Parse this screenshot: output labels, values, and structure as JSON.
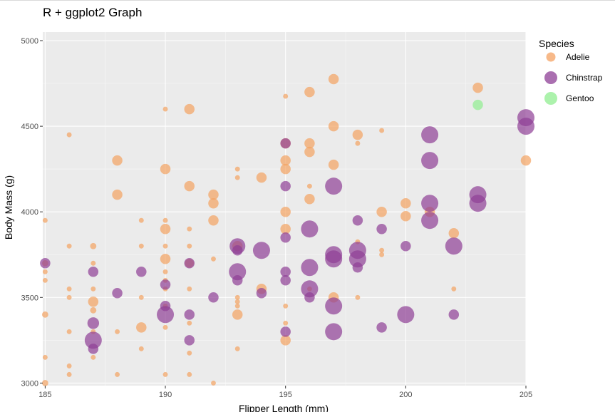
{
  "chart_data": {
    "type": "scatter",
    "title": "R + ggplot2 Graph",
    "xlabel": "Flipper Length (mm)",
    "ylabel": "Body Mass (g)",
    "xlim": [
      184.9,
      205
    ],
    "ylim": [
      2985,
      5050
    ],
    "x_ticks": [
      185,
      190,
      195,
      200,
      205
    ],
    "y_ticks": [
      3000,
      3500,
      4000,
      4500,
      5000
    ],
    "grid": true,
    "legend": {
      "title": "Species",
      "position": "right"
    },
    "size_range": [
      5,
      24
    ],
    "series": [
      {
        "name": "Adelie",
        "color": "#F4A261",
        "points": [
          [
            185,
            3950,
            0.1
          ],
          [
            185,
            3700,
            0.2
          ],
          [
            185,
            3650,
            0.1
          ],
          [
            185,
            3600,
            0.1
          ],
          [
            185,
            3400,
            0.2
          ],
          [
            185,
            3150,
            0.1
          ],
          [
            185,
            3000,
            0.2
          ],
          [
            186,
            4450,
            0.1
          ],
          [
            186,
            3800,
            0.1
          ],
          [
            186,
            3550,
            0.1
          ],
          [
            186,
            3500,
            0.1
          ],
          [
            186,
            3300,
            0.1
          ],
          [
            186,
            3100,
            0.1
          ],
          [
            186,
            3050,
            0.1
          ],
          [
            187,
            3800,
            0.2
          ],
          [
            187,
            3700,
            0.1
          ],
          [
            187,
            3550,
            0.1
          ],
          [
            187,
            3475,
            0.5
          ],
          [
            187,
            3425,
            0.2
          ],
          [
            187,
            3300,
            0.1
          ],
          [
            187,
            3150,
            0.1
          ],
          [
            188,
            4300,
            0.5
          ],
          [
            188,
            4100,
            0.5
          ],
          [
            188,
            3300,
            0.1
          ],
          [
            188,
            3050,
            0.1
          ],
          [
            189,
            3950,
            0.1
          ],
          [
            189,
            3800,
            0.1
          ],
          [
            189,
            3500,
            0.1
          ],
          [
            189,
            3325,
            0.5
          ],
          [
            189,
            3200,
            0.1
          ],
          [
            190,
            4600,
            0.1
          ],
          [
            190,
            4250,
            0.5
          ],
          [
            190,
            3950,
            0.1
          ],
          [
            190,
            3900,
            0.5
          ],
          [
            190,
            3800,
            0.1
          ],
          [
            190,
            3725,
            0.5
          ],
          [
            190,
            3650,
            0.1
          ],
          [
            190,
            3600,
            0.1
          ],
          [
            190,
            3550,
            0.1
          ],
          [
            190,
            3450,
            0.1
          ],
          [
            190,
            3325,
            0.1
          ],
          [
            190,
            3050,
            0.1
          ],
          [
            191,
            4600,
            0.5
          ],
          [
            191,
            4150,
            0.5
          ],
          [
            191,
            3900,
            0.1
          ],
          [
            191,
            3800,
            0.1
          ],
          [
            191,
            3700,
            0.4
          ],
          [
            191,
            3550,
            0.1
          ],
          [
            191,
            3350,
            0.1
          ],
          [
            191,
            3175,
            0.1
          ],
          [
            191,
            3050,
            0.1
          ],
          [
            192,
            4100,
            0.5
          ],
          [
            192,
            4050,
            0.5
          ],
          [
            192,
            3950,
            0.5
          ],
          [
            192,
            3725,
            0.1
          ],
          [
            192,
            3000,
            0.1
          ],
          [
            193,
            4250,
            0.1
          ],
          [
            193,
            4200,
            0.1
          ],
          [
            193,
            3800,
            0.5
          ],
          [
            193,
            3500,
            0.1
          ],
          [
            193,
            3475,
            0.1
          ],
          [
            193,
            3450,
            0.1
          ],
          [
            193,
            3400,
            0.5
          ],
          [
            193,
            3200,
            0.1
          ],
          [
            194,
            4200,
            0.5
          ],
          [
            194,
            3550,
            0.5
          ],
          [
            195,
            4675,
            0.1
          ],
          [
            195,
            4400,
            0.5
          ],
          [
            195,
            4300,
            0.5
          ],
          [
            195,
            4250,
            0.5
          ],
          [
            195,
            4000,
            0.5
          ],
          [
            195,
            3900,
            0.5
          ],
          [
            195,
            3450,
            0.1
          ],
          [
            195,
            3350,
            0.1
          ],
          [
            195,
            3250,
            0.5
          ],
          [
            196,
            4700,
            0.5
          ],
          [
            196,
            4400,
            0.5
          ],
          [
            196,
            4350,
            0.5
          ],
          [
            196,
            4150,
            0.1
          ],
          [
            196,
            4075,
            0.5
          ],
          [
            196,
            3550,
            0.1
          ],
          [
            197,
            4775,
            0.5
          ],
          [
            197,
            4500,
            0.5
          ],
          [
            197,
            4275,
            0.5
          ],
          [
            197,
            3500,
            0.5
          ],
          [
            198,
            4450,
            0.5
          ],
          [
            198,
            4400,
            0.1
          ],
          [
            198,
            3825,
            0.1
          ],
          [
            198,
            3500,
            0.1
          ],
          [
            199,
            4475,
            0.1
          ],
          [
            199,
            4000,
            0.5
          ],
          [
            199,
            3775,
            0.1
          ],
          [
            199,
            3750,
            0.1
          ],
          [
            200,
            4050,
            0.5
          ],
          [
            200,
            3975,
            0.5
          ],
          [
            201,
            4000,
            0.5
          ],
          [
            202,
            3875,
            0.5
          ],
          [
            202,
            3550,
            0.1
          ],
          [
            203,
            4725,
            0.5
          ],
          [
            205,
            4300,
            0.5
          ]
        ]
      },
      {
        "name": "Chinstrap",
        "color": "#8E3F96",
        "points": [
          [
            185,
            3700,
            0.5
          ],
          [
            187,
            3650,
            0.5
          ],
          [
            187,
            3350,
            0.6
          ],
          [
            187,
            3250,
            1
          ],
          [
            187,
            3200,
            0.5
          ],
          [
            188,
            3525,
            0.5
          ],
          [
            189,
            3650,
            0.5
          ],
          [
            190,
            3575,
            0.5
          ],
          [
            190,
            3450,
            0.5
          ],
          [
            190,
            3400,
            1
          ],
          [
            191,
            3700,
            0.5
          ],
          [
            191,
            3400,
            0.5
          ],
          [
            191,
            3250,
            0.5
          ],
          [
            192,
            3500,
            0.5
          ],
          [
            193,
            3800,
            0.9
          ],
          [
            193,
            3775,
            0.5
          ],
          [
            193,
            3650,
            1
          ],
          [
            193,
            3600,
            0.5
          ],
          [
            194,
            3775,
            1
          ],
          [
            194,
            3525,
            0.5
          ],
          [
            195,
            4400,
            0.5
          ],
          [
            195,
            4150,
            0.5
          ],
          [
            195,
            3850,
            0.5
          ],
          [
            195,
            3650,
            0.5
          ],
          [
            195,
            3600,
            0.5
          ],
          [
            195,
            3300,
            0.5
          ],
          [
            196,
            3900,
            1
          ],
          [
            196,
            3675,
            1
          ],
          [
            196,
            3550,
            1
          ],
          [
            196,
            3500,
            0.5
          ],
          [
            197,
            4150,
            1
          ],
          [
            197,
            3750,
            1
          ],
          [
            197,
            3725,
            1
          ],
          [
            197,
            3450,
            1
          ],
          [
            197,
            3300,
            1
          ],
          [
            198,
            3950,
            0.5
          ],
          [
            198,
            3775,
            1
          ],
          [
            198,
            3725,
            1
          ],
          [
            198,
            3675,
            0.5
          ],
          [
            199,
            3900,
            0.5
          ],
          [
            199,
            3325,
            0.5
          ],
          [
            200,
            3800,
            0.5
          ],
          [
            200,
            3400,
            1
          ],
          [
            201,
            4450,
            1
          ],
          [
            201,
            4300,
            1
          ],
          [
            201,
            4050,
            1
          ],
          [
            201,
            3950,
            1
          ],
          [
            202,
            3800,
            1
          ],
          [
            202,
            3400,
            0.5
          ],
          [
            203,
            4100,
            1
          ],
          [
            203,
            4050,
            1
          ],
          [
            205,
            4550,
            1
          ],
          [
            205,
            4500,
            1
          ]
        ]
      },
      {
        "name": "Gentoo",
        "color": "#90EE90",
        "points": [
          [
            203,
            4625,
            0.5
          ]
        ]
      }
    ]
  }
}
